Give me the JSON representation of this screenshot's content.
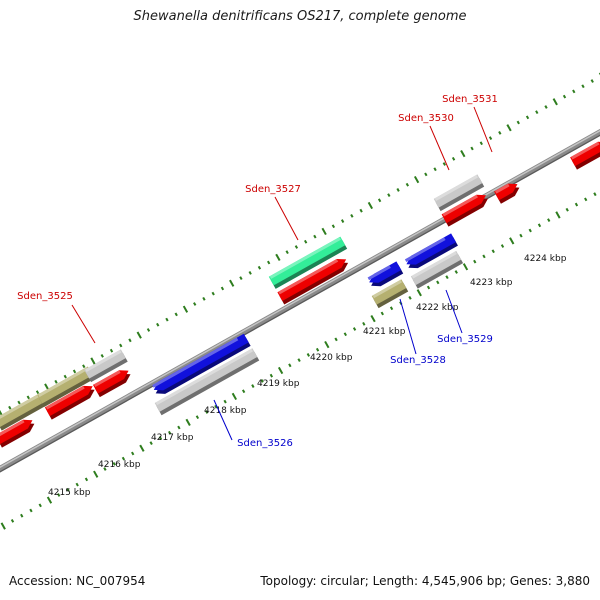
{
  "title": "Shewanella denitrificans OS217, complete genome",
  "footer": {
    "accession": "Accession: NC_007954",
    "summary": "Topology: circular; Length: 4,545,906 bp; Genes: 3,880"
  },
  "colors": {
    "backbone": "#8a8a8a",
    "tick": "#2e7d1e",
    "label_top": "#cc0000",
    "label_bottom": "#0000cc",
    "red": "#ee0000",
    "blue": "#1111dd",
    "gray": "#c9c9c9",
    "olive": "#b5b070",
    "green": "#33ee99"
  },
  "scale": {
    "unit": "kbp",
    "labels": [
      "4215 kbp",
      "4216 kbp",
      "4217 kbp",
      "4218 kbp",
      "4219 kbp",
      "4220 kbp",
      "4221 kbp",
      "4222 kbp",
      "4223 kbp",
      "4224 kbp"
    ]
  },
  "gene_labels": [
    {
      "text": "Sden_3525",
      "color": "red"
    },
    {
      "text": "Sden_3526",
      "color": "blue"
    },
    {
      "text": "Sden_3527",
      "color": "red"
    },
    {
      "text": "Sden_3528",
      "color": "blue"
    },
    {
      "text": "Sden_3529",
      "color": "blue"
    },
    {
      "text": "Sden_3530",
      "color": "red"
    },
    {
      "text": "Sden_3531",
      "color": "red"
    }
  ]
}
